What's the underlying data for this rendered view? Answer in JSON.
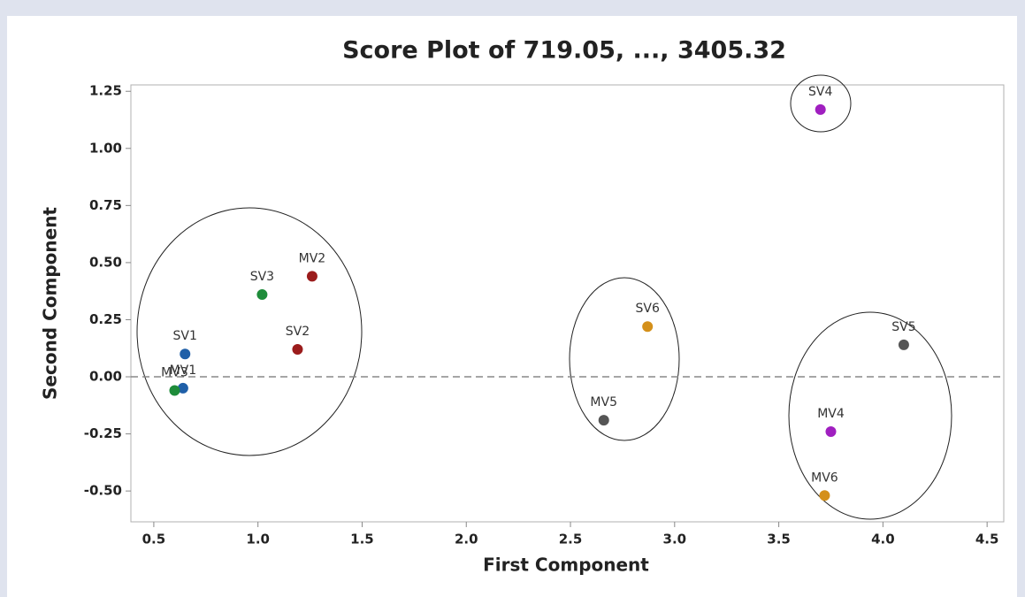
{
  "chart_data": {
    "type": "scatter",
    "title": "Score Plot of 719.05, ..., 3405.32",
    "xlabel": "First Component",
    "ylabel": "Second Component",
    "labels": [
      "SV1",
      "MV1",
      "MV3",
      "SV3",
      "MV2",
      "SV2",
      "SV6",
      "MV5",
      "SV4",
      "SV5",
      "MV4",
      "MV6"
    ],
    "x": [
      0.65,
      0.64,
      0.6,
      1.02,
      1.26,
      1.19,
      2.87,
      2.66,
      3.7,
      4.1,
      3.75,
      3.72
    ],
    "values": [
      0.1,
      -0.05,
      -0.06,
      0.36,
      0.44,
      0.12,
      0.22,
      -0.19,
      1.17,
      0.14,
      -0.24,
      -0.52
    ],
    "colors": [
      "#1f5fa8",
      "#1f5fa8",
      "#1e8c3a",
      "#1e8c3a",
      "#9b1c1c",
      "#9b1c1c",
      "#d4901a",
      "#555555",
      "#a01fc0",
      "#555555",
      "#a01fc0",
      "#d4901a"
    ],
    "xlim": [
      0.39,
      4.58
    ],
    "ylim": [
      -0.635,
      1.278
    ],
    "xticks": [
      0.5,
      {
        "value": 1,
        "label": "1.0"
      },
      1.5,
      {
        "value": 2,
        "label": "2.0"
      },
      2.5,
      {
        "value": 3,
        "label": "3.0"
      },
      3.5,
      {
        "value": 4,
        "label": "4.0"
      },
      4.5
    ],
    "yticks": [
      1.25,
      {
        "value": 1,
        "label": "1.00"
      },
      0.75,
      {
        "value": 0.5,
        "label": "0.50"
      },
      0.25,
      {
        "value": 0,
        "label": "0.00"
      },
      -0.25,
      {
        "value": -0.5,
        "label": "-0.50"
      }
    ],
    "reference_line": 0,
    "grid": false
  }
}
